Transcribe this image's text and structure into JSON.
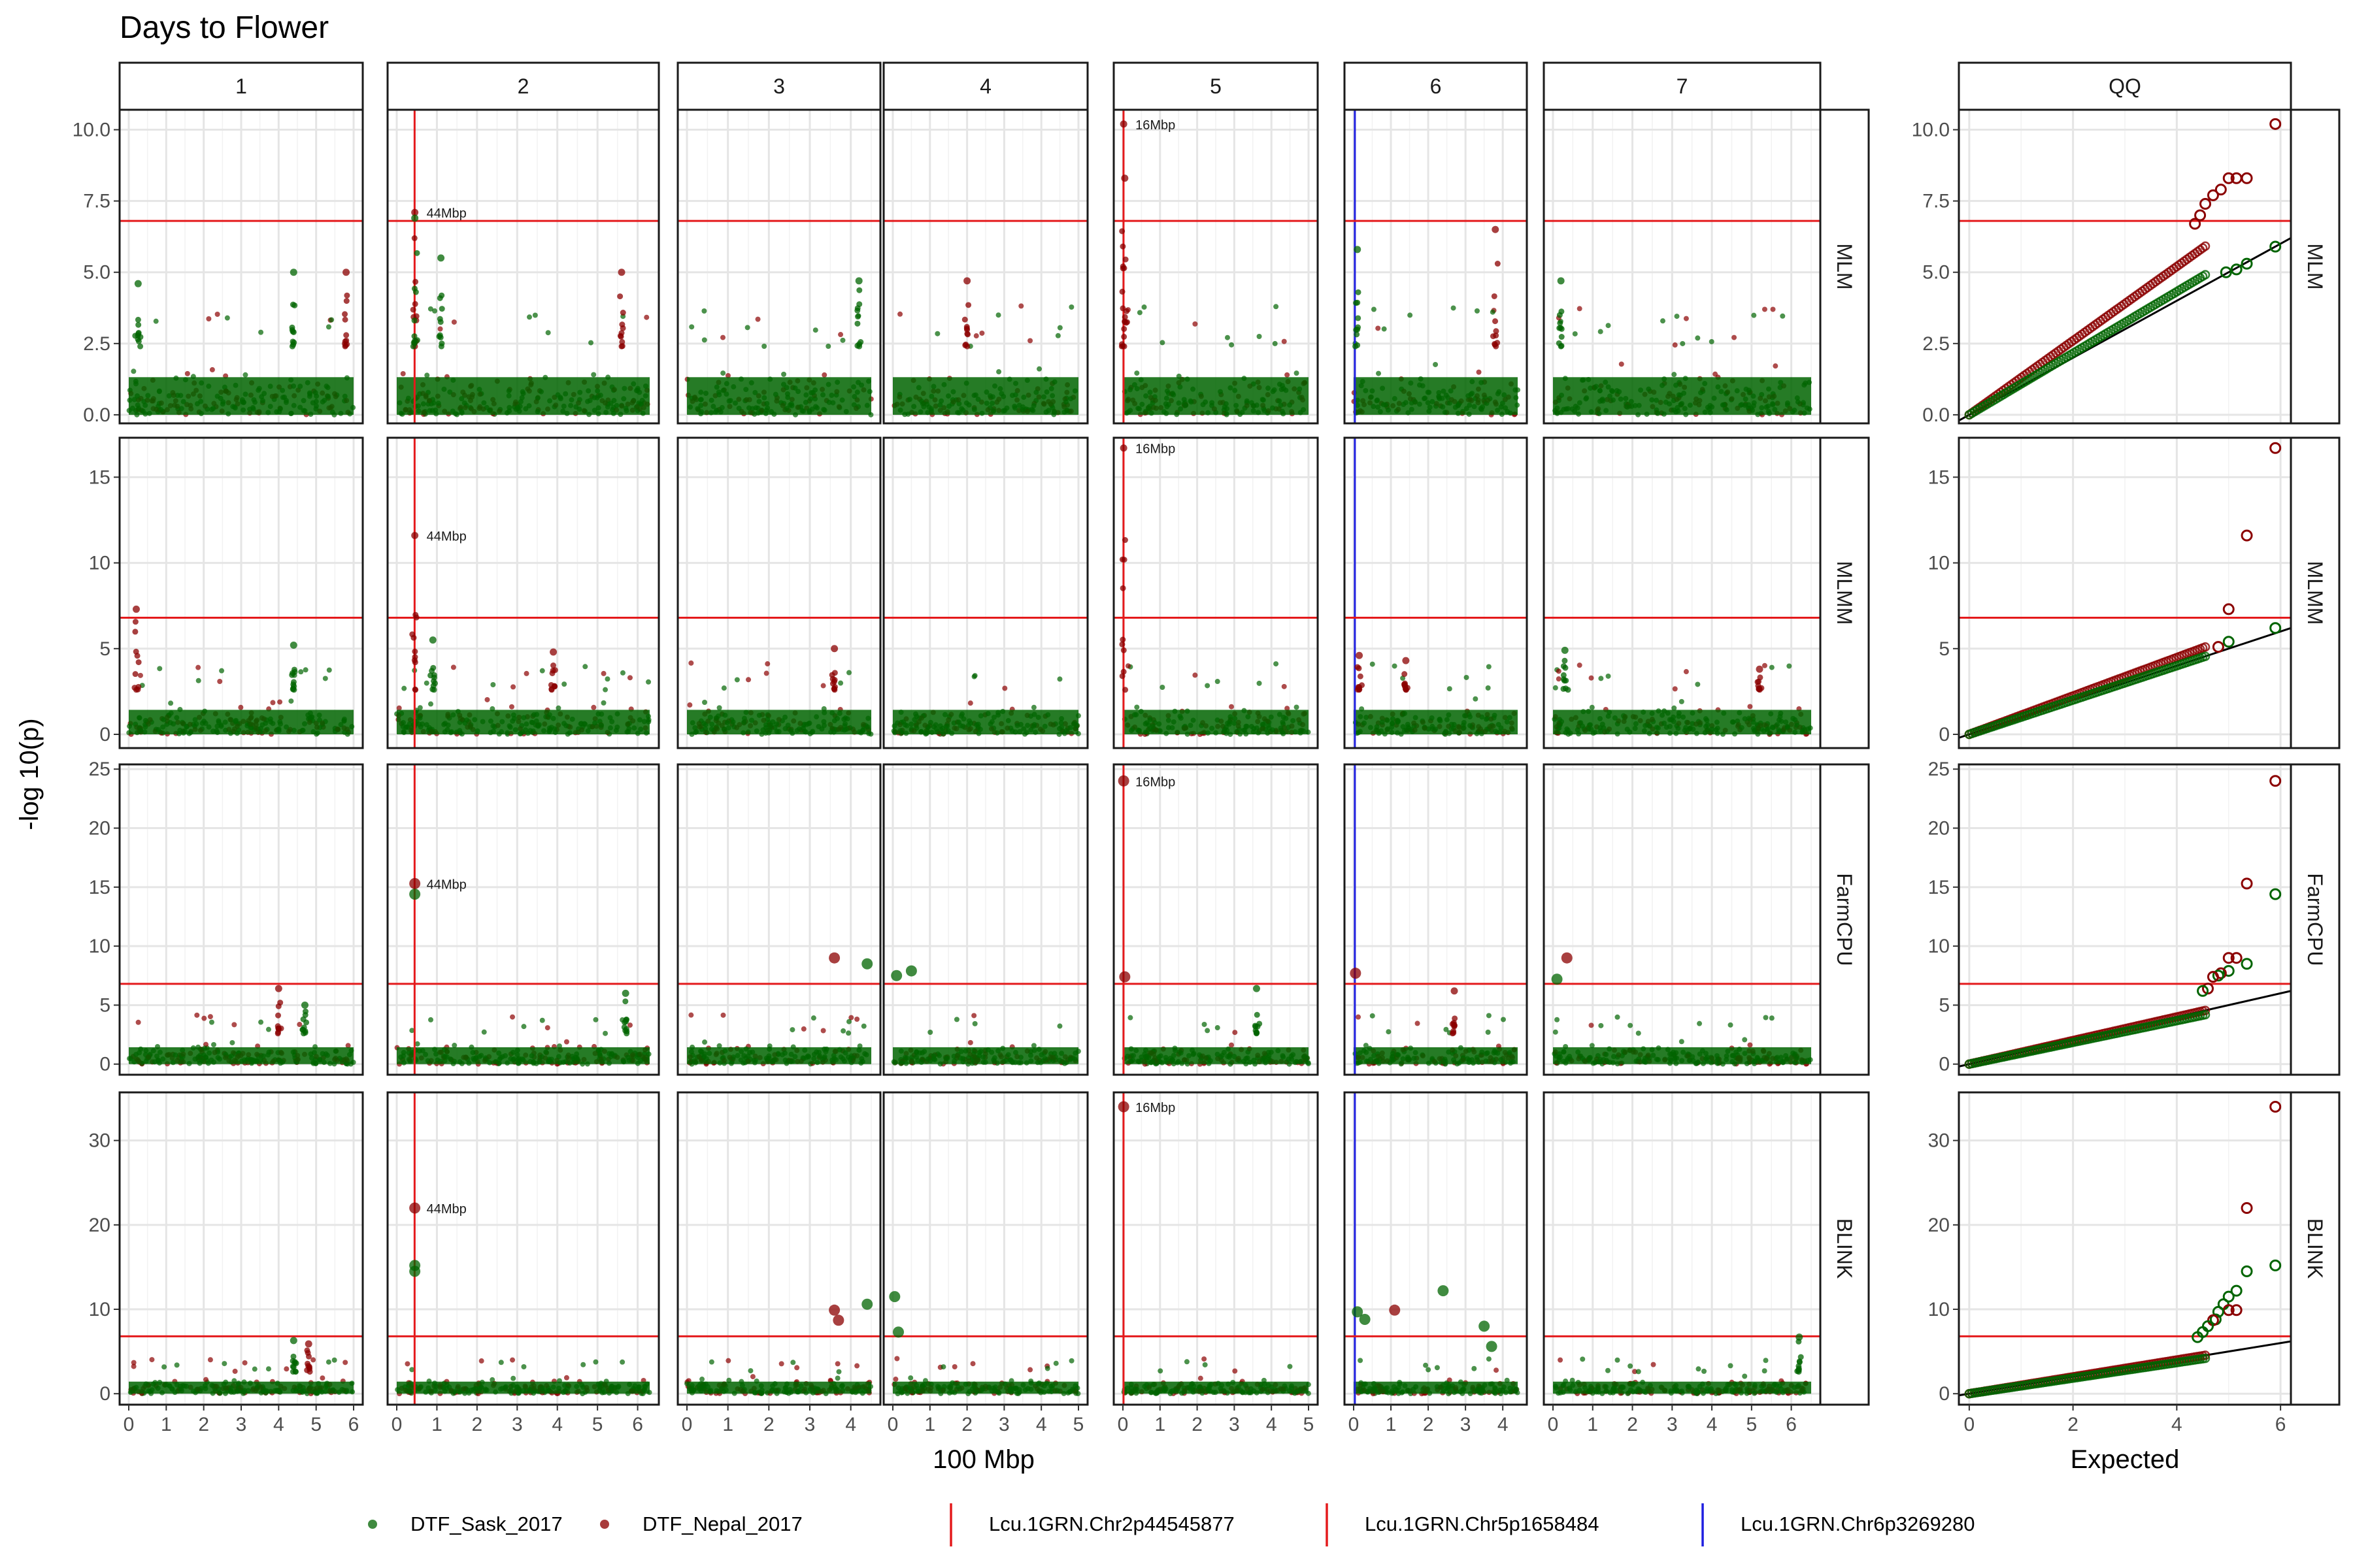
{
  "title": "Days to Flower",
  "xlabel": "100 Mbp",
  "ylabel": "-log 10(p)",
  "qq_strip": "QQ",
  "qq_xlabel": "Expected",
  "legend": [
    {
      "label": "DTF_Sask_2017",
      "kind": "point",
      "color": "#3f8a3f"
    },
    {
      "label": "DTF_Nepal_2017",
      "kind": "point",
      "color": "#a83c3c"
    },
    {
      "label": "Lcu.1GRN.Chr2p44545877",
      "kind": "line",
      "color": "#e41a1c"
    },
    {
      "label": "Lcu.1GRN.Chr5p1658484",
      "kind": "line",
      "color": "#e41a1c"
    },
    {
      "label": "Lcu.1GRN.Chr6p3269280",
      "kind": "line",
      "color": "#1f1fe0"
    }
  ],
  "colors": {
    "sask": "#006400",
    "nepal": "#8b0000",
    "threshold": "#e41a1c",
    "marker_red": "#e41a1c",
    "marker_blue": "#1f1fe0"
  },
  "chart_data": {
    "type": "scatter",
    "threshold": 6.8,
    "chromosomes": [
      {
        "name": "1",
        "xmax": 6.0,
        "ticks": [
          0,
          1,
          2,
          3,
          4,
          5,
          6
        ]
      },
      {
        "name": "2",
        "xmax": 6.3,
        "ticks": [
          0,
          1,
          2,
          3,
          4,
          5,
          6
        ]
      },
      {
        "name": "3",
        "xmax": 4.5,
        "ticks": [
          0,
          1,
          2,
          3,
          4
        ]
      },
      {
        "name": "4",
        "xmax": 5.0,
        "ticks": [
          0,
          1,
          2,
          3,
          4,
          5
        ]
      },
      {
        "name": "5",
        "xmax": 5.0,
        "ticks": [
          0,
          1,
          2,
          3,
          4,
          5
        ]
      },
      {
        "name": "6",
        "xmax": 4.4,
        "ticks": [
          0,
          1,
          2,
          3,
          4
        ]
      },
      {
        "name": "7",
        "xmax": 6.5,
        "ticks": [
          0,
          1,
          2,
          3,
          4,
          5,
          6
        ]
      }
    ],
    "markers": [
      {
        "name": "Lcu.1GRN.Chr2p44545877",
        "chrom": "2",
        "pos": 0.445,
        "color": "red"
      },
      {
        "name": "Lcu.1GRN.Chr5p1658484",
        "chrom": "5",
        "pos": 0.017,
        "color": "red"
      },
      {
        "name": "Lcu.1GRN.Chr6p3269280",
        "chrom": "6",
        "pos": 0.033,
        "color": "blue"
      }
    ],
    "models": [
      {
        "name": "MLM",
        "ylim": [
          -0.3,
          10.7
        ],
        "yticks": [
          0.0,
          2.5,
          5.0,
          7.5,
          10.0
        ],
        "ytick_labels": [
          "0.0",
          "2.5",
          "5.0",
          "7.5",
          "10.0"
        ],
        "baseline": [
          0.0,
          2.4
        ],
        "peaks": [
          {
            "chrom": "1",
            "pos": 0.25,
            "y": 4.6,
            "trait": "sask"
          },
          {
            "chrom": "1",
            "pos": 4.4,
            "y": 5.0,
            "trait": "sask"
          },
          {
            "chrom": "1",
            "pos": 5.8,
            "y": 5.0,
            "trait": "nepal"
          },
          {
            "chrom": "2",
            "pos": 0.45,
            "y": 7.1,
            "trait": "nepal",
            "label": "44Mbp"
          },
          {
            "chrom": "2",
            "pos": 0.45,
            "y": 6.9,
            "trait": "sask"
          },
          {
            "chrom": "2",
            "pos": 1.1,
            "y": 5.5,
            "trait": "sask"
          },
          {
            "chrom": "2",
            "pos": 5.6,
            "y": 5.0,
            "trait": "nepal"
          },
          {
            "chrom": "3",
            "pos": 4.2,
            "y": 4.7,
            "trait": "sask"
          },
          {
            "chrom": "4",
            "pos": 2.0,
            "y": 4.7,
            "trait": "nepal"
          },
          {
            "chrom": "5",
            "pos": 0.02,
            "y": 10.2,
            "trait": "nepal",
            "label": "16Mbp"
          },
          {
            "chrom": "5",
            "pos": 0.05,
            "y": 8.3,
            "trait": "nepal"
          },
          {
            "chrom": "6",
            "pos": 0.1,
            "y": 5.8,
            "trait": "sask"
          },
          {
            "chrom": "6",
            "pos": 3.8,
            "y": 6.5,
            "trait": "nepal"
          },
          {
            "chrom": "7",
            "pos": 0.2,
            "y": 4.7,
            "trait": "sask"
          }
        ],
        "qq": [
          {
            "x": 5.9,
            "y": 10.2,
            "trait": "nepal"
          },
          {
            "x": 5.35,
            "y": 8.3,
            "trait": "nepal"
          },
          {
            "x": 5.15,
            "y": 8.3,
            "trait": "nepal"
          },
          {
            "x": 5.0,
            "y": 8.3,
            "trait": "nepal"
          },
          {
            "x": 4.85,
            "y": 7.9,
            "trait": "nepal"
          },
          {
            "x": 4.7,
            "y": 7.7,
            "trait": "nepal"
          },
          {
            "x": 4.55,
            "y": 7.4,
            "trait": "nepal"
          },
          {
            "x": 4.45,
            "y": 7.0,
            "trait": "nepal"
          },
          {
            "x": 4.35,
            "y": 6.7,
            "trait": "nepal"
          },
          {
            "x": 5.9,
            "y": 5.9,
            "trait": "sask"
          },
          {
            "x": 5.35,
            "y": 5.3,
            "trait": "sask"
          },
          {
            "x": 5.15,
            "y": 5.1,
            "trait": "sask"
          },
          {
            "x": 4.95,
            "y": 5.0,
            "trait": "sask"
          }
        ],
        "qq_slope": [
          1.3,
          1.08
        ]
      },
      {
        "name": "MLMM",
        "ylim": [
          -0.8,
          17.3
        ],
        "yticks": [
          0,
          5,
          10,
          15
        ],
        "ytick_labels": [
          "0",
          "5",
          "10",
          "15"
        ],
        "baseline": [
          0.0,
          2.6
        ],
        "peaks": [
          {
            "chrom": "1",
            "pos": 0.2,
            "y": 7.3,
            "trait": "nepal"
          },
          {
            "chrom": "1",
            "pos": 4.4,
            "y": 5.2,
            "trait": "sask"
          },
          {
            "chrom": "2",
            "pos": 0.45,
            "y": 11.6,
            "trait": "nepal",
            "label": "44Mbp"
          },
          {
            "chrom": "2",
            "pos": 0.9,
            "y": 5.5,
            "trait": "sask"
          },
          {
            "chrom": "2",
            "pos": 3.9,
            "y": 4.8,
            "trait": "nepal"
          },
          {
            "chrom": "3",
            "pos": 3.6,
            "y": 5.0,
            "trait": "nepal"
          },
          {
            "chrom": "5",
            "pos": 0.02,
            "y": 16.7,
            "trait": "nepal",
            "label": "16Mbp"
          },
          {
            "chrom": "6",
            "pos": 0.15,
            "y": 4.6,
            "trait": "nepal"
          },
          {
            "chrom": "6",
            "pos": 1.4,
            "y": 4.3,
            "trait": "nepal"
          },
          {
            "chrom": "7",
            "pos": 0.3,
            "y": 4.9,
            "trait": "sask"
          },
          {
            "chrom": "7",
            "pos": 5.2,
            "y": 3.8,
            "trait": "nepal"
          }
        ],
        "qq": [
          {
            "x": 5.9,
            "y": 16.7,
            "trait": "nepal"
          },
          {
            "x": 5.35,
            "y": 11.6,
            "trait": "nepal"
          },
          {
            "x": 5.0,
            "y": 7.3,
            "trait": "nepal"
          },
          {
            "x": 5.9,
            "y": 6.2,
            "trait": "sask"
          },
          {
            "x": 5.0,
            "y": 5.4,
            "trait": "sask"
          },
          {
            "x": 4.8,
            "y": 5.1,
            "trait": "nepal"
          }
        ],
        "qq_slope": [
          1.12,
          1.0
        ]
      },
      {
        "name": "FarmCPU",
        "ylim": [
          -0.9,
          25.4
        ],
        "yticks": [
          0,
          5,
          10,
          15,
          20,
          25
        ],
        "ytick_labels": [
          "0",
          "5",
          "10",
          "15",
          "20",
          "25"
        ],
        "baseline": [
          0.0,
          2.6
        ],
        "peaks": [
          {
            "chrom": "1",
            "pos": 4.0,
            "y": 6.4,
            "trait": "nepal"
          },
          {
            "chrom": "1",
            "pos": 4.7,
            "y": 5.0,
            "trait": "sask"
          },
          {
            "chrom": "2",
            "pos": 0.45,
            "y": 15.3,
            "trait": "nepal",
            "label": "44Mbp",
            "big": true
          },
          {
            "chrom": "2",
            "pos": 0.45,
            "y": 14.4,
            "trait": "sask",
            "big": true
          },
          {
            "chrom": "2",
            "pos": 5.7,
            "y": 6.0,
            "trait": "sask"
          },
          {
            "chrom": "3",
            "pos": 3.6,
            "y": 9.0,
            "trait": "nepal",
            "big": true
          },
          {
            "chrom": "3",
            "pos": 4.4,
            "y": 8.5,
            "trait": "sask",
            "big": true
          },
          {
            "chrom": "4",
            "pos": 0.1,
            "y": 7.5,
            "trait": "sask",
            "big": true
          },
          {
            "chrom": "4",
            "pos": 0.5,
            "y": 7.9,
            "trait": "sask",
            "big": true
          },
          {
            "chrom": "5",
            "pos": 0.02,
            "y": 24.0,
            "trait": "nepal",
            "label": "16Mbp",
            "big": true
          },
          {
            "chrom": "5",
            "pos": 0.05,
            "y": 7.4,
            "trait": "nepal",
            "big": true
          },
          {
            "chrom": "5",
            "pos": 3.6,
            "y": 6.4,
            "trait": "sask"
          },
          {
            "chrom": "6",
            "pos": 0.05,
            "y": 7.7,
            "trait": "nepal",
            "big": true
          },
          {
            "chrom": "6",
            "pos": 2.7,
            "y": 6.2,
            "trait": "nepal"
          },
          {
            "chrom": "7",
            "pos": 0.35,
            "y": 9.0,
            "trait": "nepal",
            "big": true
          },
          {
            "chrom": "7",
            "pos": 0.1,
            "y": 7.2,
            "trait": "sask",
            "big": true
          }
        ],
        "qq": [
          {
            "x": 5.9,
            "y": 24.0,
            "trait": "nepal"
          },
          {
            "x": 5.35,
            "y": 15.3,
            "trait": "nepal"
          },
          {
            "x": 5.9,
            "y": 14.4,
            "trait": "sask"
          },
          {
            "x": 5.15,
            "y": 9.0,
            "trait": "nepal"
          },
          {
            "x": 5.0,
            "y": 9.0,
            "trait": "nepal"
          },
          {
            "x": 5.35,
            "y": 8.5,
            "trait": "sask"
          },
          {
            "x": 5.0,
            "y": 7.9,
            "trait": "sask"
          },
          {
            "x": 4.85,
            "y": 7.7,
            "trait": "nepal"
          },
          {
            "x": 4.8,
            "y": 7.5,
            "trait": "sask"
          },
          {
            "x": 4.7,
            "y": 7.4,
            "trait": "nepal"
          },
          {
            "x": 4.6,
            "y": 6.4,
            "trait": "nepal"
          },
          {
            "x": 4.5,
            "y": 6.2,
            "trait": "sask"
          }
        ],
        "qq_slope": [
          1.0,
          0.92
        ]
      },
      {
        "name": "BLINK",
        "ylim": [
          -1.3,
          35.7
        ],
        "yticks": [
          0,
          10,
          20,
          30
        ],
        "ytick_labels": [
          "0",
          "10",
          "20",
          "30"
        ],
        "baseline": [
          0.0,
          2.6
        ],
        "peaks": [
          {
            "chrom": "1",
            "pos": 4.4,
            "y": 6.3,
            "trait": "sask"
          },
          {
            "chrom": "1",
            "pos": 4.8,
            "y": 5.9,
            "trait": "nepal"
          },
          {
            "chrom": "2",
            "pos": 0.45,
            "y": 22.0,
            "trait": "nepal",
            "label": "44Mbp",
            "big": true
          },
          {
            "chrom": "2",
            "pos": 0.45,
            "y": 15.2,
            "trait": "sask",
            "big": true
          },
          {
            "chrom": "2",
            "pos": 0.45,
            "y": 14.5,
            "trait": "sask",
            "big": true
          },
          {
            "chrom": "3",
            "pos": 3.6,
            "y": 9.9,
            "trait": "nepal",
            "big": true
          },
          {
            "chrom": "3",
            "pos": 3.7,
            "y": 8.7,
            "trait": "nepal",
            "big": true
          },
          {
            "chrom": "3",
            "pos": 4.4,
            "y": 10.6,
            "trait": "sask",
            "big": true
          },
          {
            "chrom": "4",
            "pos": 0.05,
            "y": 11.5,
            "trait": "sask",
            "big": true
          },
          {
            "chrom": "4",
            "pos": 0.15,
            "y": 7.3,
            "trait": "sask",
            "big": true
          },
          {
            "chrom": "5",
            "pos": 0.02,
            "y": 34.0,
            "trait": "nepal",
            "label": "16Mbp",
            "big": true
          },
          {
            "chrom": "6",
            "pos": 0.1,
            "y": 9.7,
            "trait": "sask",
            "big": true
          },
          {
            "chrom": "6",
            "pos": 0.3,
            "y": 8.8,
            "trait": "sask",
            "big": true
          },
          {
            "chrom": "6",
            "pos": 1.1,
            "y": 9.9,
            "trait": "nepal",
            "big": true
          },
          {
            "chrom": "6",
            "pos": 2.4,
            "y": 12.2,
            "trait": "sask",
            "big": true
          },
          {
            "chrom": "6",
            "pos": 3.5,
            "y": 8.0,
            "trait": "sask",
            "big": true
          },
          {
            "chrom": "6",
            "pos": 3.7,
            "y": 5.6,
            "trait": "sask",
            "big": true
          },
          {
            "chrom": "7",
            "pos": 6.2,
            "y": 6.7,
            "trait": "sask"
          }
        ],
        "qq": [
          {
            "x": 5.9,
            "y": 34.0,
            "trait": "nepal"
          },
          {
            "x": 5.35,
            "y": 22.0,
            "trait": "nepal"
          },
          {
            "x": 5.9,
            "y": 15.2,
            "trait": "sask"
          },
          {
            "x": 5.35,
            "y": 14.5,
            "trait": "sask"
          },
          {
            "x": 5.15,
            "y": 12.2,
            "trait": "sask"
          },
          {
            "x": 5.0,
            "y": 11.5,
            "trait": "sask"
          },
          {
            "x": 4.9,
            "y": 10.6,
            "trait": "sask"
          },
          {
            "x": 5.15,
            "y": 9.9,
            "trait": "nepal"
          },
          {
            "x": 5.0,
            "y": 9.9,
            "trait": "nepal"
          },
          {
            "x": 4.8,
            "y": 9.7,
            "trait": "sask"
          },
          {
            "x": 4.75,
            "y": 8.8,
            "trait": "sask"
          },
          {
            "x": 4.7,
            "y": 8.7,
            "trait": "nepal"
          },
          {
            "x": 4.6,
            "y": 8.0,
            "trait": "sask"
          },
          {
            "x": 4.5,
            "y": 7.3,
            "trait": "sask"
          },
          {
            "x": 4.4,
            "y": 6.7,
            "trait": "sask"
          }
        ],
        "qq_slope": [
          1.0,
          0.92
        ]
      }
    ],
    "qq_xlim": [
      -0.2,
      6.2
    ],
    "qq_xticks": [
      0,
      2,
      4,
      6
    ]
  }
}
